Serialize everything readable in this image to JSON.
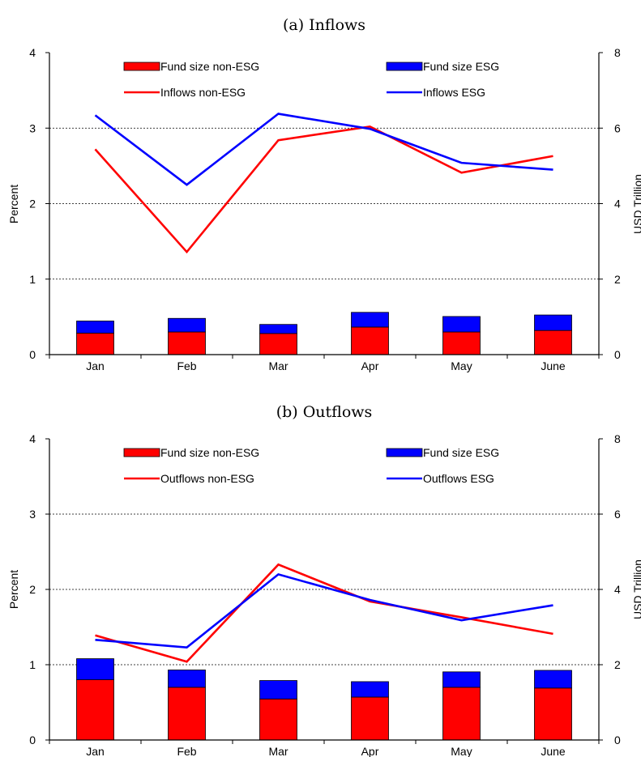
{
  "colors": {
    "non_esg": "#ff0000",
    "esg": "#0000ff",
    "axis": "#000000",
    "grid": "#000000"
  },
  "chart_data": [
    {
      "type": "bar+line",
      "title": "(a) Inflows",
      "categories": [
        "Jan",
        "Feb",
        "Mar",
        "Apr",
        "May",
        "June"
      ],
      "ylabel": "Percent",
      "ylabel2": "USD Trillion",
      "ylim": [
        0,
        4
      ],
      "y2lim": [
        0,
        8
      ],
      "yticks": [
        "0",
        "1",
        "2",
        "3",
        "4"
      ],
      "y2ticks": [
        "0",
        "2",
        "4",
        "6",
        "8"
      ],
      "grid": "horizontal dashed",
      "legend_position": "top",
      "bars_stacked": [
        {
          "name": "Fund size non-ESG",
          "axis": "right",
          "color": "#ff0000",
          "values": [
            0.57,
            0.6,
            0.56,
            0.73,
            0.6,
            0.64
          ]
        },
        {
          "name": "Fund size ESG",
          "axis": "right",
          "color": "#0000ff",
          "values": [
            0.32,
            0.36,
            0.24,
            0.39,
            0.41,
            0.41
          ]
        }
      ],
      "lines": [
        {
          "name": "Inflows non-ESG",
          "axis": "left",
          "color": "#ff0000",
          "values": [
            2.72,
            1.36,
            2.84,
            3.02,
            2.41,
            2.63
          ]
        },
        {
          "name": "Inflows ESG",
          "axis": "left",
          "color": "#0000ff",
          "values": [
            3.17,
            2.25,
            3.19,
            2.99,
            2.54,
            2.45
          ]
        }
      ],
      "legend_order": [
        "Fund size non-ESG",
        "Fund size ESG",
        "Inflows non-ESG",
        "Inflows ESG"
      ]
    },
    {
      "type": "bar+line",
      "title": "(b) Outflows",
      "categories": [
        "Jan",
        "Feb",
        "Mar",
        "Apr",
        "May",
        "June"
      ],
      "ylabel": "Percent",
      "ylabel2": "USD Trillion",
      "ylim": [
        0,
        4
      ],
      "y2lim": [
        0,
        8
      ],
      "yticks": [
        "0",
        "1",
        "2",
        "3",
        "4"
      ],
      "y2ticks": [
        "0",
        "2",
        "4",
        "6",
        "8"
      ],
      "grid": "horizontal dashed",
      "legend_position": "top",
      "bars_stacked": [
        {
          "name": "Fund size non-ESG",
          "axis": "right",
          "color": "#ff0000",
          "values": [
            1.6,
            1.4,
            1.09,
            1.14,
            1.4,
            1.38
          ]
        },
        {
          "name": "Fund size ESG",
          "axis": "right",
          "color": "#0000ff",
          "values": [
            0.56,
            0.46,
            0.49,
            0.41,
            0.41,
            0.47
          ]
        }
      ],
      "lines": [
        {
          "name": "Outflows non-ESG",
          "axis": "left",
          "color": "#ff0000",
          "values": [
            1.39,
            1.04,
            2.33,
            1.84,
            1.63,
            1.41
          ]
        },
        {
          "name": "Outflows ESG",
          "axis": "left",
          "color": "#0000ff",
          "values": [
            1.33,
            1.23,
            2.2,
            1.86,
            1.59,
            1.79
          ]
        }
      ],
      "legend_order": [
        "Fund size non-ESG",
        "Fund size ESG",
        "Outflows non-ESG",
        "Outflows ESG"
      ]
    }
  ]
}
